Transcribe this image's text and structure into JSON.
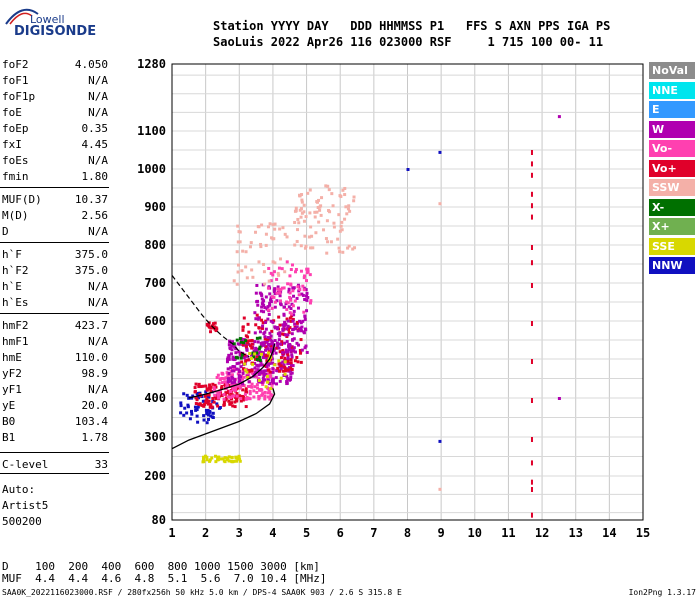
{
  "logo": {
    "top": "Lowell",
    "bottom": "DIGISONDE"
  },
  "header": {
    "line1": "Station YYYY DAY   DDD HHMMSS P1   FFS S AXN PPS IGA PS",
    "line2": "SaoLuis 2022 Apr26 116 023000 RSF     1 715 100 00- 11"
  },
  "params": [
    {
      "name": "foF2",
      "value": "4.050"
    },
    {
      "name": "foF1",
      "value": "N/A"
    },
    {
      "name": "foF1p",
      "value": "N/A"
    },
    {
      "name": "foE",
      "value": "N/A"
    },
    {
      "name": "foEp",
      "value": "0.35"
    },
    {
      "name": "fxI",
      "value": "4.45"
    },
    {
      "name": "foEs",
      "value": "N/A"
    },
    {
      "name": "fmin",
      "value": "1.80"
    },
    {
      "name": "MUF(D)",
      "value": "10.37"
    },
    {
      "name": "M(D)",
      "value": "2.56"
    },
    {
      "name": "D",
      "value": "N/A"
    },
    {
      "name": "h`F",
      "value": "375.0"
    },
    {
      "name": "h`F2",
      "value": "375.0"
    },
    {
      "name": "h`E",
      "value": "N/A"
    },
    {
      "name": "h`Es",
      "value": "N/A"
    },
    {
      "name": "hmF2",
      "value": "423.7"
    },
    {
      "name": "hmF1",
      "value": "N/A"
    },
    {
      "name": "hmE",
      "value": "110.0"
    },
    {
      "name": "yF2",
      "value": "98.9"
    },
    {
      "name": "yF1",
      "value": "N/A"
    },
    {
      "name": "yE",
      "value": "20.0"
    },
    {
      "name": "B0",
      "value": "103.4"
    },
    {
      "name": "B1",
      "value": "1.78"
    },
    {
      "name": "C-level",
      "value": "33"
    }
  ],
  "autoscaling": {
    "line1": "Auto:",
    "line2": "Artist5",
    "line3": "500200"
  },
  "legend": [
    {
      "label": "NoVal",
      "color": "#8c8c8c"
    },
    {
      "label": "NNE",
      "color": "#00e5ee"
    },
    {
      "label": "E",
      "color": "#3399ff"
    },
    {
      "label": "W",
      "color": "#b000b0"
    },
    {
      "label": "Vo-",
      "color": "#ff40b0"
    },
    {
      "label": "Vo+",
      "color": "#e0002a"
    },
    {
      "label": "SSW",
      "color": "#f4b0a8"
    },
    {
      "label": "X-",
      "color": "#007000"
    },
    {
      "label": "X+",
      "color": "#70b050"
    },
    {
      "label": "SSE",
      "color": "#d8d800"
    },
    {
      "label": "NNW",
      "color": "#1010c0"
    }
  ],
  "bottom": {
    "d_row": "D    100  200  400  600  800 1000 1500 3000 [km]",
    "muf_row": "MUF  4.4  4.4  4.6  4.8  5.1  5.6  7.0 10.4 [MHz]"
  },
  "footer": "SAA0K_2022116023000.RSF / 280fx256h 50 kHz 5.0 km / DPS-4 SAA0K 903 / 2.6 S 315.8 E",
  "version": "Ion2Png 1.3.17",
  "chart_data": {
    "type": "scatter",
    "x_ticks": [
      1,
      2,
      3,
      4,
      5,
      6,
      7,
      8,
      9,
      10,
      11,
      12,
      13,
      14,
      15
    ],
    "y_ticks": [
      80,
      200,
      300,
      400,
      500,
      600,
      700,
      800,
      900,
      1000,
      1100,
      1280
    ],
    "xlim": [
      1,
      15
    ],
    "ylim": [
      80,
      1280
    ],
    "grid": true,
    "legend_position": "right",
    "profile_curve": [
      [
        1,
        270
      ],
      [
        1.5,
        292
      ],
      [
        2,
        308
      ],
      [
        2.5,
        324
      ],
      [
        3,
        340
      ],
      [
        3.5,
        360
      ],
      [
        3.9,
        385
      ],
      [
        4.05,
        410
      ],
      [
        4.0,
        425
      ]
    ],
    "trace_curve": [
      [
        1.5,
        400
      ],
      [
        2,
        410
      ],
      [
        2.5,
        422
      ],
      [
        3,
        436
      ],
      [
        3.4,
        455
      ],
      [
        3.7,
        478
      ],
      [
        3.9,
        500
      ],
      [
        4.0,
        520
      ],
      [
        4.05,
        540
      ]
    ],
    "dashed_curve": [
      [
        1,
        720
      ],
      [
        1.3,
        685
      ],
      [
        1.6,
        650
      ],
      [
        1.9,
        615
      ],
      [
        2.2,
        585
      ],
      [
        2.5,
        560
      ],
      [
        2.8,
        540
      ],
      [
        3.0,
        520
      ],
      [
        3.3,
        505
      ]
    ],
    "echo_clusters": [
      {
        "x": [
          1.2,
          2.4
        ],
        "y": [
          340,
          420
        ],
        "color": "#1010c0",
        "n": 60
      },
      {
        "x": [
          1.6,
          3.2
        ],
        "y": [
          380,
          440
        ],
        "color": "#e0002a",
        "n": 120
      },
      {
        "x": [
          2.2,
          4.0
        ],
        "y": [
          400,
          480
        ],
        "color": "#ff40b0",
        "n": 160
      },
      {
        "x": [
          2.6,
          4.6
        ],
        "y": [
          440,
          560
        ],
        "color": "#b000b0",
        "n": 260
      },
      {
        "x": [
          3.0,
          4.8
        ],
        "y": [
          470,
          620
        ],
        "color": "#e0002a",
        "n": 120
      },
      {
        "x": [
          3.4,
          5.0
        ],
        "y": [
          520,
          700
        ],
        "color": "#b000b0",
        "n": 180
      },
      {
        "x": [
          3.8,
          5.1
        ],
        "y": [
          620,
          760
        ],
        "color": "#ff40b0",
        "n": 60
      },
      {
        "x": [
          4.6,
          6.4
        ],
        "y": [
          780,
          960
        ],
        "color": "#f4b0a8",
        "n": 90
      },
      {
        "x": [
          2.8,
          4.4
        ],
        "y": [
          700,
          860
        ],
        "color": "#f4b0a8",
        "n": 50
      },
      {
        "x": [
          2.0,
          2.3
        ],
        "y": [
          575,
          600
        ],
        "color": "#e0002a",
        "n": 20
      },
      {
        "x": [
          1.8,
          3.0
        ],
        "y": [
          240,
          255
        ],
        "color": "#d8d800",
        "n": 40
      },
      {
        "x": [
          2.8,
          3.6
        ],
        "y": [
          500,
          560
        ],
        "color": "#007000",
        "n": 20
      },
      {
        "x": [
          3.0,
          4.6
        ],
        "y": [
          420,
          520
        ],
        "color": "#d8d800",
        "n": 25
      }
    ],
    "vertical_streak": {
      "x": 11.7,
      "points": [
        1050,
        1020,
        990,
        940,
        910,
        880,
        800,
        760,
        700,
        600,
        500,
        400,
        300,
        240,
        190,
        170,
        100
      ],
      "color": "#e0002a"
    },
    "isolated_points": [
      {
        "x": 12.5,
        "y": 1140,
        "color": "#b000b0"
      },
      {
        "x": 8.95,
        "y": 1045,
        "color": "#1010c0"
      },
      {
        "x": 8.0,
        "y": 1000,
        "color": "#1010c0"
      },
      {
        "x": 8.95,
        "y": 290,
        "color": "#1010c0"
      },
      {
        "x": 12.5,
        "y": 400,
        "color": "#b000b0"
      },
      {
        "x": 8.95,
        "y": 910,
        "color": "#f4b0a8"
      },
      {
        "x": 8.95,
        "y": 165,
        "color": "#f4b0a8"
      }
    ]
  }
}
